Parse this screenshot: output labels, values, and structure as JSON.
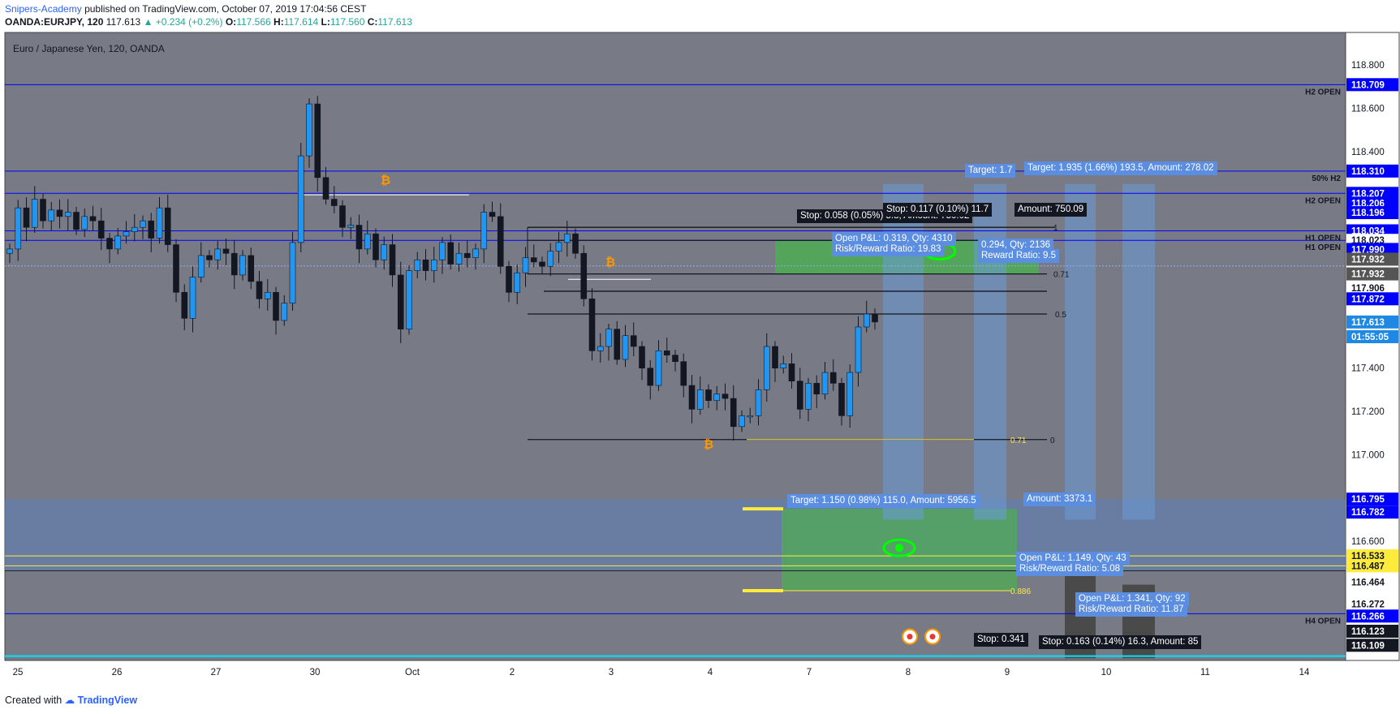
{
  "header": {
    "publisher": "Snipers-Academy",
    "published_text": "published on TradingView.com, October 07, 2019 17:04:56 CEST",
    "symbol": "OANDA:EURJPY, 120",
    "last": "117.613",
    "change": "▲ +0.234 (+0.2%)",
    "ohlc": {
      "O": "117.566",
      "H": "117.614",
      "L": "117.560",
      "C": "117.613"
    }
  },
  "chart_title": "Euro / Japanese Yen, 120, OANDA",
  "footer": {
    "created_with": "Created with",
    "brand": "TradingView"
  },
  "colors": {
    "bg": "#787b86",
    "up": "#2196f3",
    "down": "#131722",
    "level": "#0000ff",
    "green": "#4caf50",
    "yellow": "#ffeb3b",
    "price_blue": "#2962ff"
  },
  "chart_data": {
    "type": "candlestick",
    "instrument": "EURJPY",
    "timeframe": "120",
    "ylim": [
      116.05,
      118.95
    ],
    "y_ticks": [
      "118.800",
      "118.600",
      "118.400",
      "118.200",
      "117.400",
      "117.200",
      "117.000",
      "116.600"
    ],
    "x_ticks": [
      "25",
      "26",
      "27",
      "30",
      "Oct",
      "2",
      "3",
      "4",
      "7",
      "8",
      "9",
      "10",
      "11",
      "14"
    ],
    "ohlc_path": [
      117.95,
      118.14,
      118.05,
      118.18,
      118.08,
      118.13,
      118.1,
      118.12,
      118.04,
      118.1,
      118.08,
      118.0,
      117.95,
      118.01,
      118.03,
      118.05,
      118.08,
      118.0,
      118.14,
      117.97,
      117.75,
      117.63,
      117.82,
      117.92,
      117.9,
      117.95,
      117.93,
      117.83,
      117.92,
      117.8,
      117.72,
      117.75,
      117.62,
      117.7,
      117.98,
      118.38,
      118.62,
      118.28,
      118.18,
      118.15,
      118.05,
      118.06,
      117.95,
      118.02,
      117.9,
      117.97,
      117.83,
      117.58,
      117.85,
      117.9,
      117.85,
      117.9,
      117.98,
      117.88,
      117.93,
      117.91,
      117.95,
      118.12,
      118.1,
      117.87,
      117.75,
      117.84,
      117.91,
      117.89,
      117.87,
      117.94,
      117.98,
      118.02,
      117.93,
      117.72,
      117.48,
      117.5,
      117.58,
      117.44,
      117.55,
      117.5,
      117.4,
      117.32,
      117.48,
      117.46,
      117.43,
      117.32,
      117.21,
      117.3,
      117.25,
      117.28,
      117.26,
      117.13,
      117.18,
      117.18,
      117.3,
      117.5,
      117.4,
      117.42,
      117.34,
      117.21,
      117.33,
      117.28,
      117.38,
      117.33,
      117.18,
      117.38,
      117.59,
      117.65,
      117.613
    ],
    "levels": [
      {
        "label": "H2 OPEN",
        "value": "118.709"
      },
      {
        "label": "50% H2",
        "value": "118.310"
      },
      {
        "label": "H2 OPEN",
        "value": "118.207"
      },
      {
        "label": "H1 OPEN",
        "value": "118.034"
      },
      {
        "label": "H1 OPEN",
        "value": "117.990"
      },
      {
        "label": "H4 OPEN",
        "value": "116.266"
      }
    ],
    "price_tags": [
      "118.709",
      "118.310",
      "118.207",
      "118.206",
      "118.196",
      "118.034",
      "118.023",
      "117.990",
      "117.932",
      "117.932",
      "117.906",
      "117.872",
      "117.613",
      "01:55:05",
      "116.795",
      "116.782",
      "116.533",
      "116.487",
      "116.464",
      "116.272",
      "116.266",
      "116.123",
      "116.109"
    ],
    "fib_labels": [
      "1",
      "0.5",
      "0.71",
      "0",
      "0.71",
      "0.886"
    ],
    "annotations": [
      "Stop: 0.058 (0.05%) 5.8, Amount: 750.02",
      "Stop: 0.117 (0.10%) 11.7",
      "Amount: 750.09",
      "Open P&L: 0.319, Qty: 4310",
      "Risk/Reward Ratio: 19.83",
      "0.294, Qty: 2136",
      "Reward Ratio: 9.5",
      "Target: 1.7",
      "Target: 1.935 (1.66%) 193.5, Amount: 278.02",
      "Target: 1.150 (0.98%) 115.0, Amount: 5956.5",
      "Amount: 3373.1",
      "Open P&L: 1.149, Qty: 43",
      "Risk/Reward Ratio: 5.08",
      "Open P&L: 1.341, Qty: 92",
      "Risk/Reward Ratio: 11.87",
      "Stop: 0.341",
      "Stop: 0.163 (0.14%) 16.3, Amount: 85"
    ]
  }
}
